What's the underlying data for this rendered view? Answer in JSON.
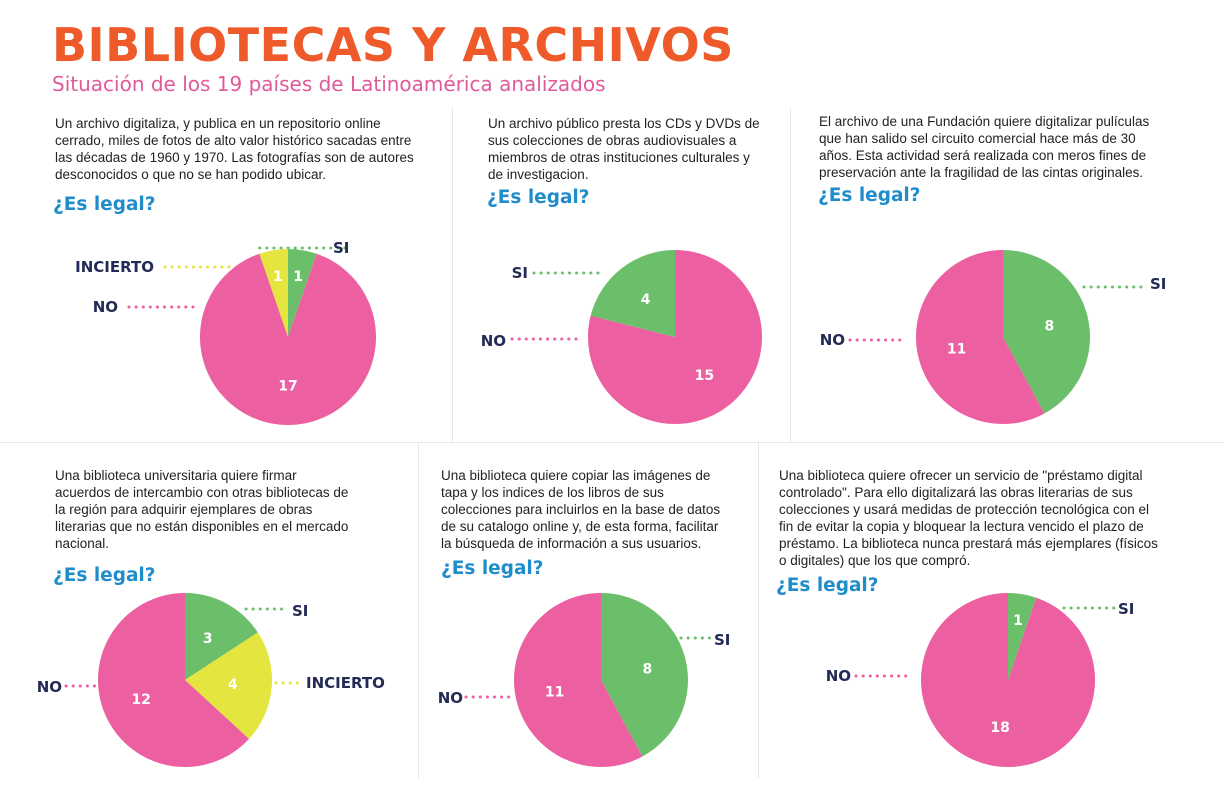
{
  "header": {
    "title": "BIBLIOTECAS Y ARCHIVOS",
    "subtitle": "Situación de los 19 países de Latinoamérica analizados"
  },
  "colors": {
    "NO": "#ec5fa0",
    "SI": "#6cbf6a",
    "INCIERTO": "#e4e53f",
    "title": "#ef5a2a",
    "accent": "#1f8ccc"
  },
  "panels": [
    {
      "lines": [
        "Un archivo digitaliza, y publica en un repositorio online",
        "cerrado, miles de fotos de alto valor histórico sacadas entre",
        "las décadas de 1960 y 1970. Las fotografías son de autores",
        "desconocidos o que no se han podido ubicar."
      ],
      "question": "¿Es legal?"
    },
    {
      "lines": [
        "Un archivo público presta los CDs y DVDs de",
        "sus colecciones de obras audiovisuales a",
        "miembros de otras instituciones culturales y",
        "de investigacion."
      ],
      "question": "¿Es legal?"
    },
    {
      "lines": [
        "El archivo de una Fundación quiere digitalizar pulículas",
        "que han salido sel circuito comercial hace más de 30",
        "años. Esta actividad será realizada con meros fines de",
        "preservación ante la fragilidad de las cintas originales."
      ],
      "question": "¿Es legal?"
    },
    {
      "lines": [
        "Una biblioteca universitaria quiere firmar",
        "acuerdos de intercambio con otras bibliotecas de",
        "la región para adquirir ejemplares de obras",
        "literarias que no están disponibles en el mercado",
        "nacional."
      ],
      "question": "¿Es legal?"
    },
    {
      "lines": [
        "Una biblioteca quiere copiar las imágenes de",
        "tapa y los indices de los libros de sus",
        "colecciones para incluirlos en la base de datos",
        "de su catalogo online y, de esta forma, facilitar",
        "la búsqueda de información a sus usuarios."
      ],
      "question": "¿Es legal?"
    },
    {
      "lines": [
        "Una biblioteca quiere ofrecer un servicio de \"préstamo digital",
        "controlado\". Para ello digitalizará las obras literarias de sus",
        "colecciones y usará medidas de protección tecnológica con el",
        "fin de evitar la copia y bloquear la lectura vencido el plazo de",
        "préstamo. La biblioteca nunca prestará más ejemplares (físicos",
        "o digitales) que los que compró."
      ],
      "question": "¿Es legal?"
    }
  ],
  "chart_data": [
    {
      "type": "pie",
      "slices": [
        {
          "label": "SI",
          "value": 1
        },
        {
          "label": "NO",
          "value": 17
        },
        {
          "label": "INCIERTO",
          "value": 1
        }
      ]
    },
    {
      "type": "pie",
      "slices": [
        {
          "label": "NO",
          "value": 15
        },
        {
          "label": "SI",
          "value": 4
        }
      ]
    },
    {
      "type": "pie",
      "slices": [
        {
          "label": "SI",
          "value": 8
        },
        {
          "label": "NO",
          "value": 11
        }
      ]
    },
    {
      "type": "pie",
      "slices": [
        {
          "label": "SI",
          "value": 3
        },
        {
          "label": "INCIERTO",
          "value": 4
        },
        {
          "label": "NO",
          "value": 12
        }
      ]
    },
    {
      "type": "pie",
      "slices": [
        {
          "label": "SI",
          "value": 8
        },
        {
          "label": "NO",
          "value": 11
        }
      ]
    },
    {
      "type": "pie",
      "slices": [
        {
          "label": "SI",
          "value": 1
        },
        {
          "label": "NO",
          "value": 18
        }
      ]
    }
  ]
}
